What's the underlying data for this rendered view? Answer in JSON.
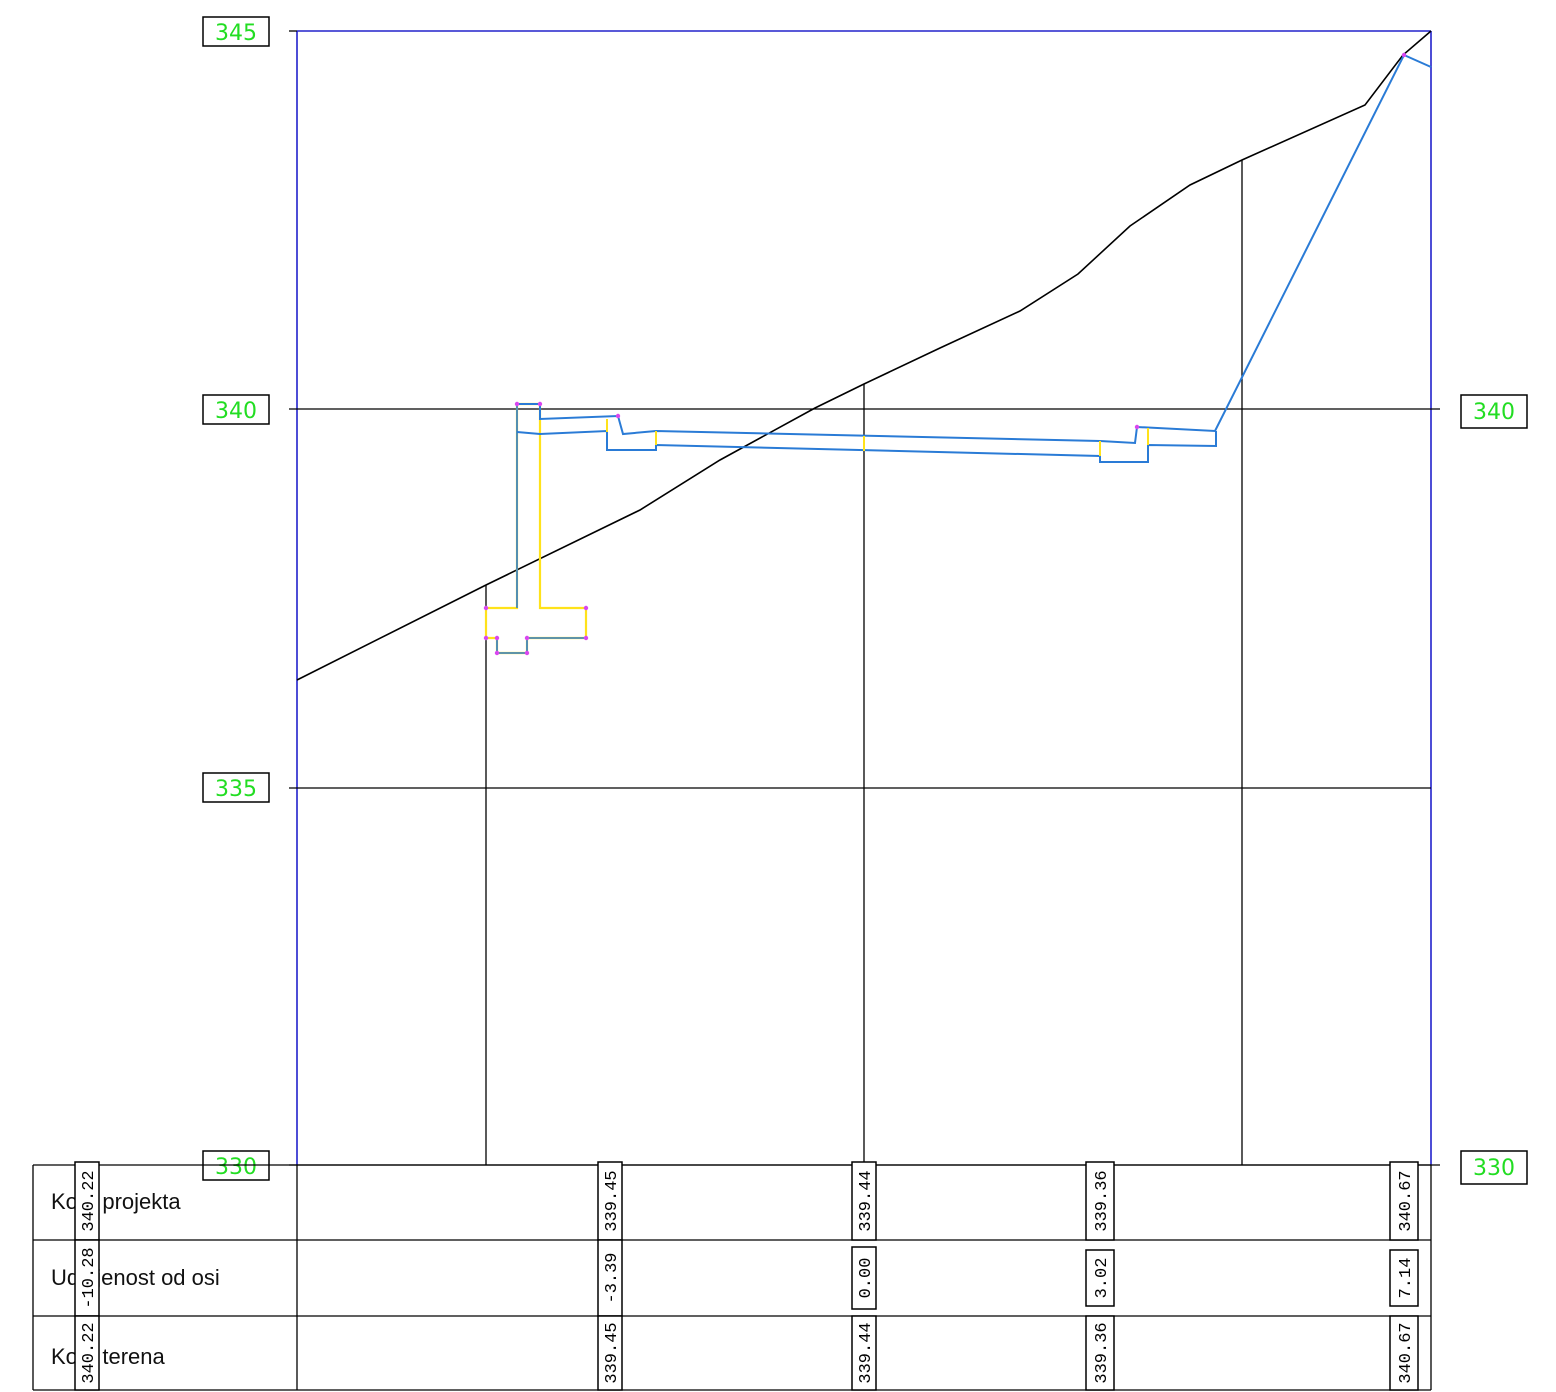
{
  "colors": {
    "frame": "#2222cc",
    "profile": "#2a7bd6",
    "hatch": "#ffe21a",
    "grid": "#000000",
    "label_text": "#22dd22",
    "node": "#d946ef"
  },
  "elevation_labels": {
    "left": [
      "345",
      "340",
      "335",
      "330"
    ],
    "right": [
      "340",
      "330"
    ]
  },
  "table": {
    "rows": [
      {
        "label": "Kote projekta"
      },
      {
        "label": "Udaljenost od osi"
      },
      {
        "label": "Kote terena"
      }
    ],
    "columns": [
      {
        "kote_projekta": "340.22",
        "udaljenost": "-10.28",
        "kote_terena": "340.22"
      },
      {
        "kote_projekta": "339.45",
        "udaljenost": "-3.39",
        "kote_terena": "339.45"
      },
      {
        "kote_projekta": "339.44",
        "udaljenost": "0.00",
        "kote_terena": "339.44"
      },
      {
        "kote_projekta": "339.36",
        "udaljenost": "3.02",
        "kote_terena": "339.36"
      },
      {
        "kote_projekta": "340.67",
        "udaljenost": "7.14",
        "kote_terena": "340.67"
      }
    ]
  }
}
